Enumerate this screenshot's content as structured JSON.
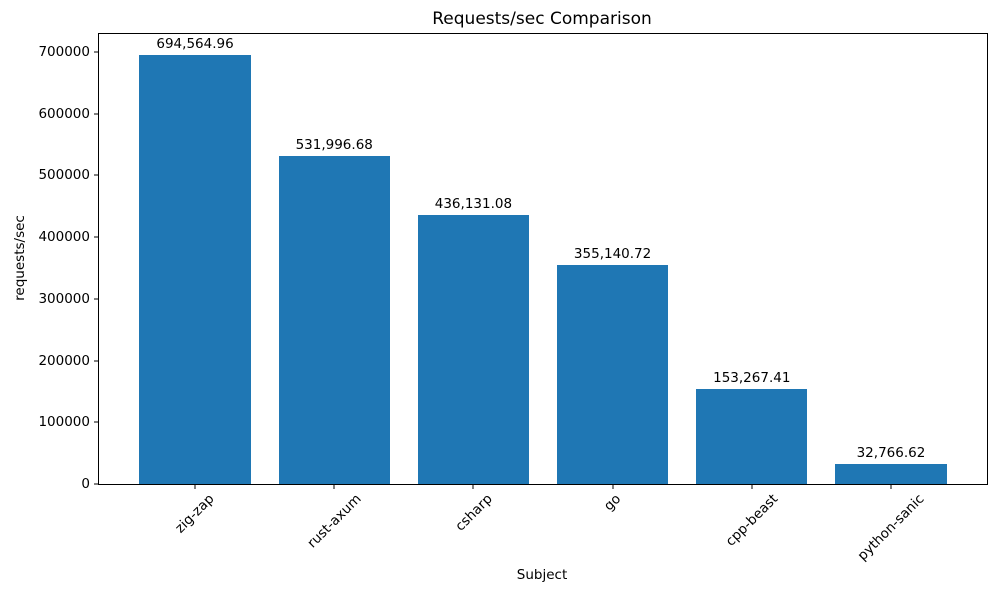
{
  "chart_data": {
    "type": "bar",
    "title": "Requests/sec Comparison",
    "xlabel": "Subject",
    "ylabel": "requests/sec",
    "categories": [
      "zig-zap",
      "rust-axum",
      "csharp",
      "go",
      "cpp-beast",
      "python-sanic"
    ],
    "values": [
      694564.96,
      531996.68,
      436131.08,
      355140.72,
      153267.41,
      32766.62
    ],
    "value_labels": [
      "694,564.96",
      "531,996.68",
      "436,131.08",
      "355,140.72",
      "153,267.41",
      "32,766.62"
    ],
    "series": [
      {
        "name": "requests/sec",
        "values": [
          694564.96,
          531996.68,
          436131.08,
          355140.72,
          153267.41,
          32766.62
        ]
      }
    ],
    "yticks": [
      0,
      100000,
      200000,
      300000,
      400000,
      500000,
      600000,
      700000
    ],
    "ylim": [
      0,
      729293
    ],
    "bar_color": "#1f77b4",
    "background_color": "#ffffff",
    "grid": false,
    "legend_position": "none",
    "xtick_rotation_deg": 45
  }
}
